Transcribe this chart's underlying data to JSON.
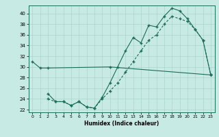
{
  "xlabel": "Humidex (Indice chaleur)",
  "bg_color": "#c8eae4",
  "line_color": "#1a6b5a",
  "grid_color": "#aad4cc",
  "xlim": [
    -0.5,
    23.5
  ],
  "ylim": [
    21.5,
    41.5
  ],
  "xticks": [
    0,
    1,
    2,
    3,
    4,
    5,
    6,
    7,
    8,
    9,
    10,
    11,
    12,
    13,
    14,
    15,
    16,
    17,
    18,
    19,
    20,
    21,
    22,
    23
  ],
  "yticks": [
    22,
    24,
    26,
    28,
    30,
    32,
    34,
    36,
    38,
    40
  ],
  "series1_x": [
    0,
    1,
    2,
    10,
    23
  ],
  "series1_y": [
    31.0,
    29.8,
    29.8,
    30.0,
    28.5
  ],
  "series2_x": [
    2,
    3,
    4,
    5,
    6,
    7,
    8,
    9,
    10,
    11,
    12,
    13,
    14,
    15,
    16,
    17,
    18,
    19,
    20,
    21,
    22,
    23
  ],
  "series2_y": [
    25.0,
    23.5,
    23.5,
    22.8,
    23.5,
    22.5,
    22.3,
    24.3,
    27.0,
    30.0,
    33.0,
    35.5,
    34.5,
    37.8,
    37.5,
    39.5,
    41.0,
    40.5,
    39.0,
    37.0,
    35.0,
    28.5
  ],
  "series3_x": [
    2,
    3,
    4,
    5,
    6,
    7,
    8,
    9,
    10,
    11,
    12,
    13,
    14,
    15,
    16,
    17,
    18,
    19,
    20,
    21,
    22,
    23
  ],
  "series3_y": [
    24.0,
    23.5,
    23.5,
    22.8,
    23.5,
    22.5,
    22.3,
    24.0,
    25.5,
    27.0,
    29.0,
    31.0,
    33.0,
    35.0,
    36.0,
    38.0,
    39.5,
    39.0,
    38.5,
    37.0,
    35.0,
    28.5
  ]
}
